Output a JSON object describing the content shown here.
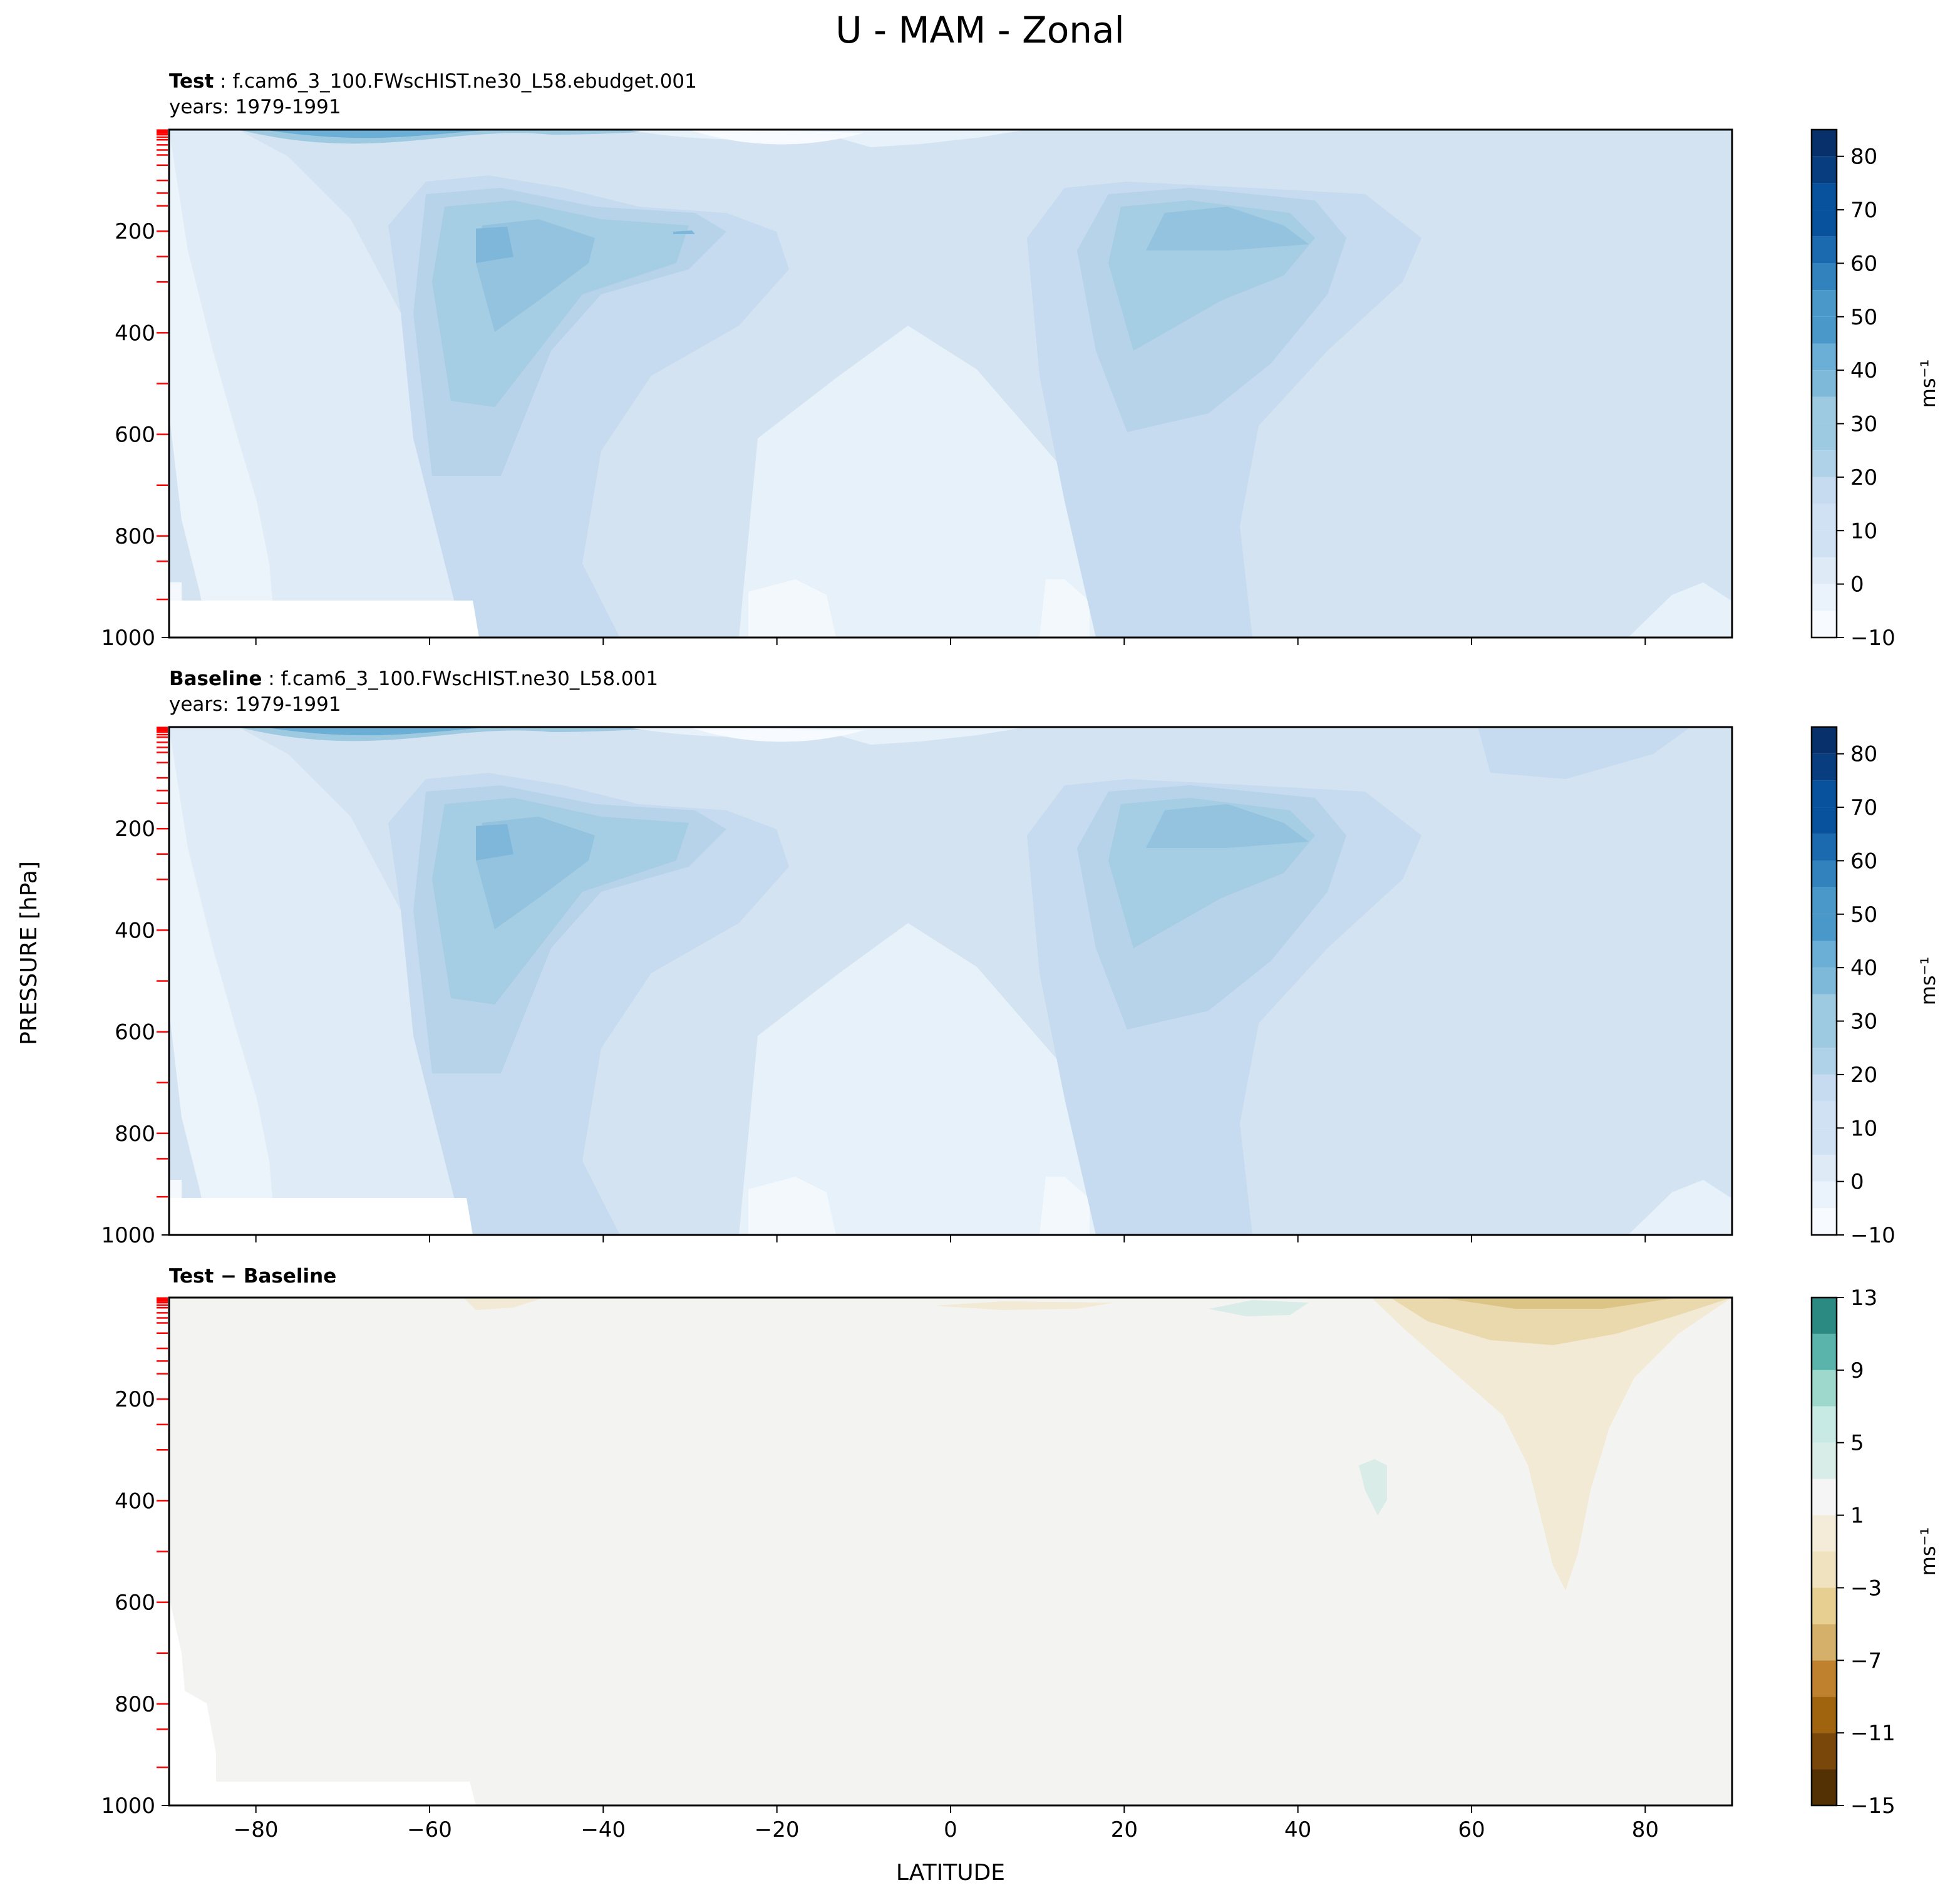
{
  "figure": {
    "title": "U - MAM - Zonal",
    "xlabel": "LATITUDE",
    "ylabel": "PRESSURE [hPa]"
  },
  "panels": [
    {
      "label_bold": "Test",
      "label_rest": " : f.cam6_3_100.FWscHIST.ne30_L58.ebudget.001",
      "years": "years: 1979-1991"
    },
    {
      "label_bold": "Baseline",
      "label_rest": " : f.cam6_3_100.FWscHIST.ne30_L58.001",
      "years": "years: 1979-1991"
    },
    {
      "label_bold": "Test − Baseline",
      "label_rest": "",
      "years": ""
    }
  ],
  "colors": {
    "blues": [
      "#f7fbff",
      "#eaf3fb",
      "#deebf7",
      "#cfe1f2",
      "#c6dbef",
      "#b0d2e8",
      "#9ecae1",
      "#7fb9da",
      "#6baed6",
      "#4a98c9",
      "#3182bd",
      "#1b69af",
      "#08519c",
      "#083e80",
      "#08306b"
    ],
    "diverging": [
      "#543005",
      "#7a470a",
      "#a0640f",
      "#bf812d",
      "#d4b06a",
      "#e6cf90",
      "#f0e2be",
      "#f4ecd8",
      "#f5f5f5",
      "#d8ece8",
      "#c7eae5",
      "#9ed8cc",
      "#5ab4ac",
      "#2b8a82",
      "#01665e",
      "#003c30"
    ],
    "neutral_fill": "#f3f4f2",
    "level_tick": "#ff0000"
  },
  "chart_data": [
    {
      "type": "contourf",
      "name": "Test",
      "x_range": [
        -90,
        90
      ],
      "y_range": [
        1000,
        0
      ],
      "x_ticks": [
        -80,
        -60,
        -40,
        -20,
        0,
        20,
        40,
        60,
        80
      ],
      "y_ticks": [
        200,
        400,
        600,
        800,
        1000
      ],
      "colorbar": {
        "label": "ms⁻¹",
        "ticks": [
          -10,
          0,
          10,
          20,
          30,
          40,
          50,
          60,
          70,
          80
        ],
        "range": [
          -10,
          85
        ]
      },
      "features": [
        {
          "kind": "subtropical jet",
          "lat": -52,
          "pressure_hPa": 230,
          "max_ms": 35
        },
        {
          "kind": "subtropical jet",
          "lat": 30,
          "pressure_hPa": 200,
          "max_ms": 30
        },
        {
          "kind": "polar night jet",
          "lat": -65,
          "pressure_hPa": 5,
          "max_ms": 45
        },
        {
          "kind": "tropical easterlies",
          "lat": -10,
          "pressure_hPa": 30,
          "min_ms": -10
        }
      ]
    },
    {
      "type": "contourf",
      "name": "Baseline",
      "x_range": [
        -90,
        90
      ],
      "y_range": [
        1000,
        0
      ],
      "x_ticks": [
        -80,
        -60,
        -40,
        -20,
        0,
        20,
        40,
        60,
        80
      ],
      "y_ticks": [
        200,
        400,
        600,
        800,
        1000
      ],
      "colorbar": {
        "label": "ms⁻¹",
        "ticks": [
          -10,
          0,
          10,
          20,
          30,
          40,
          50,
          60,
          70,
          80
        ],
        "range": [
          -10,
          85
        ]
      },
      "features": [
        {
          "kind": "subtropical jet",
          "lat": -52,
          "pressure_hPa": 230,
          "max_ms": 35
        },
        {
          "kind": "subtropical jet",
          "lat": 30,
          "pressure_hPa": 200,
          "max_ms": 30
        },
        {
          "kind": "polar night jet",
          "lat": -65,
          "pressure_hPa": 5,
          "max_ms": 45
        },
        {
          "kind": "tropical easterlies",
          "lat": -10,
          "pressure_hPa": 30,
          "min_ms": -10
        }
      ]
    },
    {
      "type": "contourf",
      "name": "Test − Baseline",
      "x_range": [
        -90,
        90
      ],
      "y_range": [
        1000,
        0
      ],
      "x_ticks": [
        -80,
        -60,
        -40,
        -20,
        0,
        20,
        40,
        60,
        80
      ],
      "y_ticks": [
        200,
        400,
        600,
        800,
        1000
      ],
      "colorbar": {
        "label": "ms⁻¹",
        "ticks": [
          -15,
          -11,
          -7,
          -3,
          1,
          5,
          9,
          13
        ],
        "range": [
          -15,
          13
        ]
      },
      "features": [
        {
          "kind": "negative anomaly",
          "lat": 70,
          "pressure_hPa": 20,
          "min_ms": -5
        },
        {
          "kind": "negative tongue",
          "lat": 72,
          "pressure_hPa": 570,
          "min_ms": -1
        },
        {
          "kind": "positive anomaly",
          "lat": 48,
          "pressure_hPa": 280,
          "max_ms": 1
        },
        {
          "kind": "positive anomaly",
          "lat": 36,
          "pressure_hPa": 20,
          "max_ms": 1
        }
      ]
    }
  ]
}
